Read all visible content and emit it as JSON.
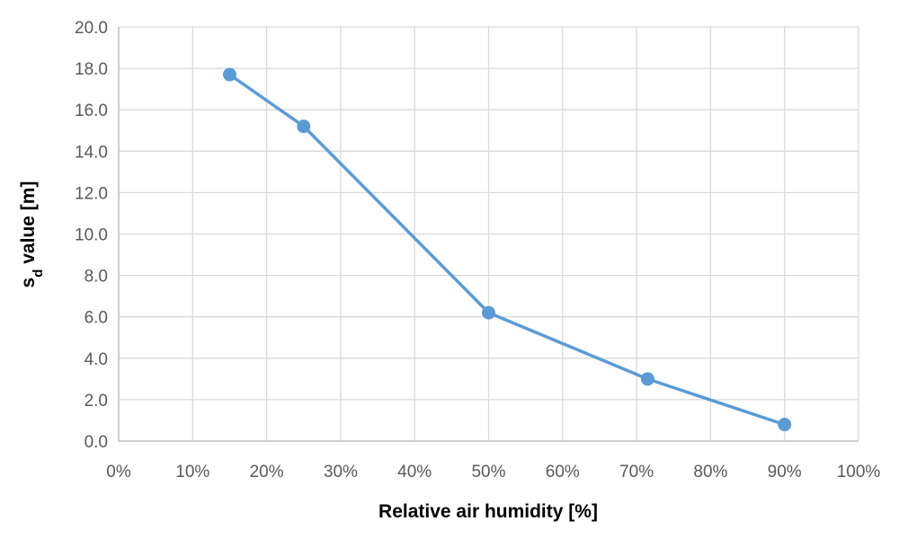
{
  "chart_data": {
    "type": "line",
    "title": "",
    "xlabel": "Relative air humidity [%]",
    "ylabel": {
      "main": "s",
      "subscript": "d",
      "suffix": " value [m]"
    },
    "xlim": [
      0,
      100
    ],
    "ylim": [
      0,
      20
    ],
    "x_ticks": [
      "0%",
      "10%",
      "20%",
      "30%",
      "40%",
      "50%",
      "60%",
      "70%",
      "80%",
      "90%",
      "100%"
    ],
    "y_ticks": [
      "0.0",
      "2.0",
      "4.0",
      "6.0",
      "8.0",
      "10.0",
      "12.0",
      "14.0",
      "16.0",
      "18.0",
      "20.0"
    ],
    "grid": true,
    "legend": "none",
    "series": [
      {
        "color": "#5b9bd5",
        "x": [
          15,
          25,
          50,
          71.5,
          90
        ],
        "y": [
          17.7,
          15.2,
          6.2,
          3.0,
          0.8
        ]
      }
    ]
  }
}
